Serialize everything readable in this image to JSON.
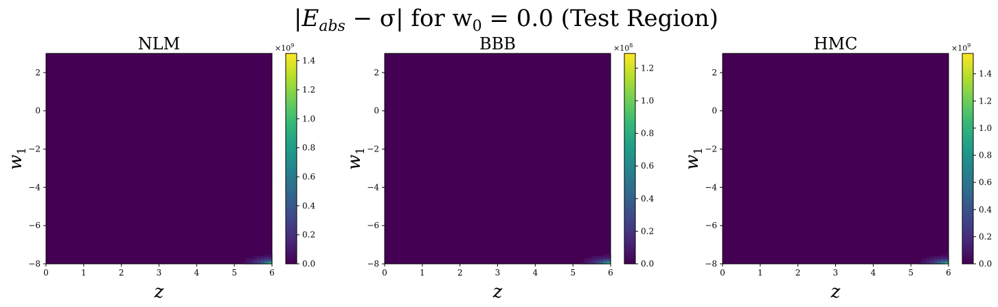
{
  "figure": {
    "suptitle_prefix": "|E",
    "suptitle_prefix_sub": "abs",
    "suptitle_mid": " − σ| for w",
    "suptitle_mid_sub": "0",
    "suptitle_suffix": " = 0.0 (Test Region)"
  },
  "colormap": {
    "name": "viridis",
    "stops": [
      "#440154",
      "#482878",
      "#3e4989",
      "#31688e",
      "#26828e",
      "#1f9e89",
      "#35b779",
      "#6ece58",
      "#b5de2b",
      "#fde725"
    ]
  },
  "chart_data": [
    {
      "type": "heatmap",
      "title": "NLM",
      "xlabel": "z",
      "ylabel": "w",
      "ylabel_sub": "1",
      "xlim": [
        0,
        6
      ],
      "ylim": [
        -8,
        3
      ],
      "x_ticks": [
        0,
        1,
        2,
        3,
        4,
        5,
        6
      ],
      "y_ticks": [
        2,
        0,
        -2,
        -4,
        -6,
        -8
      ],
      "x_tick_labels": [
        "0",
        "1",
        "2",
        "3",
        "4",
        "5",
        "6"
      ],
      "y_tick_labels": [
        "2",
        "0",
        "−2",
        "−4",
        "−6",
        "−8"
      ],
      "colorbar_max": 1.45,
      "colorbar_ticks": [
        0.0,
        0.2,
        0.4,
        0.6,
        0.8,
        1.0,
        1.2,
        1.4
      ],
      "colorbar_tick_labels": [
        "0.0",
        "0.2",
        "0.4",
        "0.6",
        "0.8",
        "1.0",
        "1.2",
        "1.4"
      ],
      "colorbar_scale_base": "×10",
      "colorbar_scale_exp": "9",
      "peak_value": 1.45,
      "peak_location": [
        6,
        -8
      ]
    },
    {
      "type": "heatmap",
      "title": "BBB",
      "xlabel": "z",
      "ylabel": "w",
      "ylabel_sub": "1",
      "xlim": [
        0,
        6
      ],
      "ylim": [
        -8,
        3
      ],
      "x_ticks": [
        0,
        1,
        2,
        3,
        4,
        5,
        6
      ],
      "y_ticks": [
        2,
        0,
        -2,
        -4,
        -6,
        -8
      ],
      "x_tick_labels": [
        "0",
        "1",
        "2",
        "3",
        "4",
        "5",
        "6"
      ],
      "y_tick_labels": [
        "2",
        "0",
        "−2",
        "−4",
        "−6",
        "−8"
      ],
      "colorbar_max": 1.29,
      "colorbar_ticks": [
        0.0,
        0.2,
        0.4,
        0.6,
        0.8,
        1.0,
        1.2
      ],
      "colorbar_tick_labels": [
        "0.0",
        "0.2",
        "0.4",
        "0.6",
        "0.8",
        "1.0",
        "1.2"
      ],
      "colorbar_scale_base": "×10",
      "colorbar_scale_exp": "8",
      "peak_value": 1.29,
      "peak_location": [
        6,
        -8
      ]
    },
    {
      "type": "heatmap",
      "title": "HMC",
      "xlabel": "z",
      "ylabel": "w",
      "ylabel_sub": "1",
      "xlim": [
        0,
        6
      ],
      "ylim": [
        -8,
        3
      ],
      "x_ticks": [
        0,
        1,
        2,
        3,
        4,
        5,
        6
      ],
      "y_ticks": [
        2,
        0,
        -2,
        -4,
        -6,
        -8
      ],
      "x_tick_labels": [
        "0",
        "1",
        "2",
        "3",
        "4",
        "5",
        "6"
      ],
      "y_tick_labels": [
        "2",
        "0",
        "−2",
        "−4",
        "−6",
        "−8"
      ],
      "colorbar_max": 1.55,
      "colorbar_ticks": [
        0.0,
        0.2,
        0.4,
        0.6,
        0.8,
        1.0,
        1.2,
        1.4
      ],
      "colorbar_tick_labels": [
        "0.0",
        "0.2",
        "0.4",
        "0.6",
        "0.8",
        "1.0",
        "1.2",
        "1.4"
      ],
      "colorbar_scale_base": "×10",
      "colorbar_scale_exp": "9",
      "peak_value": 1.55,
      "peak_location": [
        6,
        -8
      ]
    }
  ]
}
